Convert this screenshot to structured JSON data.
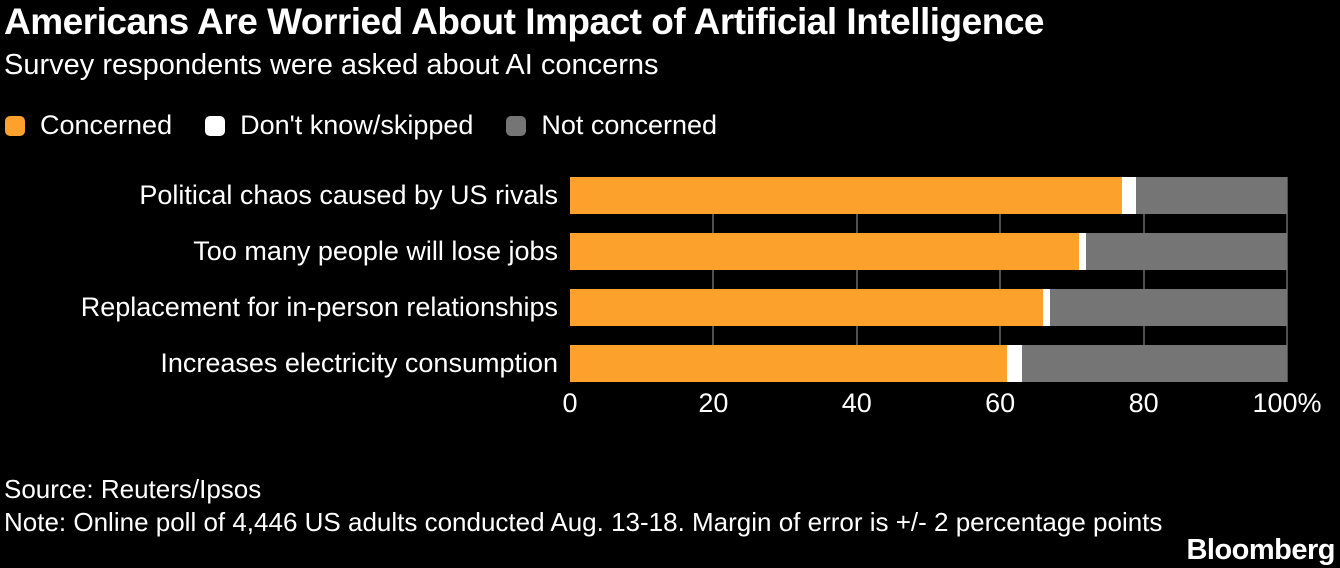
{
  "colors": {
    "background": "#000000",
    "text": "#ffffff",
    "gridline": "#4f4f4f",
    "concerned": "#fba12c",
    "dont_know": "#ffffff",
    "not_concerned": "#757575"
  },
  "chart_data": {
    "type": "bar",
    "orientation": "horizontal",
    "stacked": true,
    "title": "Americans Are Worried About Impact of Artificial Intelligence",
    "subtitle": "Survey respondents were asked about AI concerns",
    "categories": [
      "Political chaos caused by US rivals",
      "Too many people will lose jobs",
      "Replacement for in-person relationships",
      "Increases electricity consumption"
    ],
    "series": [
      {
        "name": "Concerned",
        "color": "#fba12c",
        "values": [
          77,
          71,
          66,
          61
        ]
      },
      {
        "name": "Don't know/skipped",
        "color": "#ffffff",
        "values": [
          2,
          1,
          1,
          2
        ]
      },
      {
        "name": "Not concerned",
        "color": "#757575",
        "values": [
          21,
          28,
          33,
          37
        ]
      }
    ],
    "xlim": [
      0,
      100
    ],
    "x_ticks": [
      0,
      20,
      40,
      60,
      80,
      100
    ],
    "x_tick_labels": [
      "0",
      "20",
      "40",
      "60",
      "80",
      "100%"
    ],
    "legend_position": "top",
    "grid": "vertical-between-bars"
  },
  "footer": {
    "source": "Source: Reuters/Ipsos",
    "note": "Note: Online poll of 4,446 US adults conducted Aug. 13-18. Margin of error is +/- 2 percentage points",
    "logo": "Bloomberg"
  }
}
